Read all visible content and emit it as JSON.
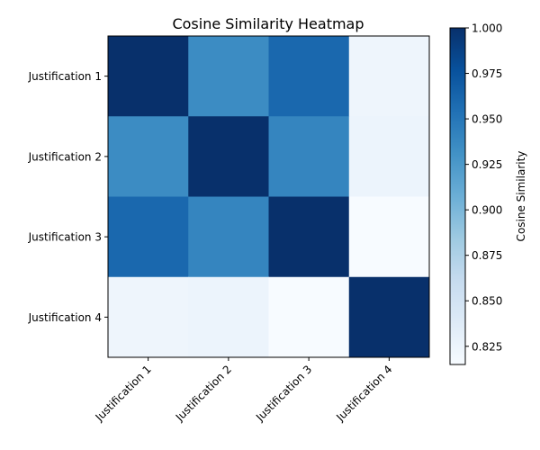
{
  "chart_data": {
    "type": "heatmap",
    "title": "Cosine Similarity Heatmap",
    "rows": [
      "Justification 1",
      "Justification 2",
      "Justification 3",
      "Justification 4"
    ],
    "columns": [
      "Justification 1",
      "Justification 2",
      "Justification 3",
      "Justification 4"
    ],
    "values": [
      [
        1.0,
        0.935,
        0.96,
        0.823
      ],
      [
        0.935,
        1.0,
        0.94,
        0.825
      ],
      [
        0.96,
        0.94,
        1.0,
        0.815
      ],
      [
        0.823,
        0.825,
        0.815,
        1.0
      ]
    ],
    "colormap": "Blues",
    "colorbar": {
      "label": "Cosine Similarity",
      "range": [
        0.815,
        1.0
      ],
      "ticks": [
        "0.825",
        "0.850",
        "0.875",
        "0.900",
        "0.925",
        "0.950",
        "0.975",
        "1.000"
      ]
    },
    "grid": false,
    "x_tick_rotation_deg": 45
  }
}
